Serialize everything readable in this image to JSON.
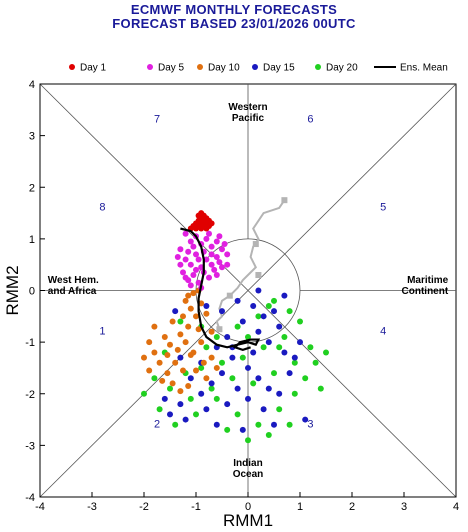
{
  "title": "ECMWF MONTHLY FORECASTS",
  "subtitle": "FORECAST  BASED 23/01/2026 00UTC",
  "chart_data": {
    "type": "scatter",
    "xlabel": "RMM1",
    "ylabel": "RMM2",
    "xlim": [
      -4,
      4
    ],
    "ylim": [
      -4,
      4
    ],
    "xticks": [
      "-4",
      "-3",
      "-2",
      "-1",
      "0",
      "1",
      "2",
      "3",
      "4"
    ],
    "yticks": [
      "-4",
      "-3",
      "-2",
      "-1",
      "0",
      "1",
      "2",
      "3",
      "4"
    ],
    "grid": false,
    "legend_position": "top",
    "phases": [
      {
        "label": "1",
        "x": -2.8,
        "y": -0.85
      },
      {
        "label": "2",
        "x": -1.75,
        "y": -2.65
      },
      {
        "label": "3",
        "x": 1.2,
        "y": -2.65
      },
      {
        "label": "4",
        "x": 2.6,
        "y": -0.85
      },
      {
        "label": "5",
        "x": 2.6,
        "y": 1.55
      },
      {
        "label": "6",
        "x": 1.2,
        "y": 3.25
      },
      {
        "label": "7",
        "x": -1.75,
        "y": 3.25
      },
      {
        "label": "8",
        "x": -2.8,
        "y": 1.55
      }
    ],
    "regions": [
      {
        "lines": [
          "Western",
          "Pacific"
        ],
        "x": 0.0,
        "y": 3.5,
        "anchor": "middle"
      },
      {
        "lines": [
          "West Hem.",
          "and Africa"
        ],
        "x": -3.85,
        "y": 0.15,
        "anchor": "start"
      },
      {
        "lines": [
          "Maritime",
          "Continent"
        ],
        "x": 3.85,
        "y": 0.15,
        "anchor": "end"
      },
      {
        "lines": [
          "Indian",
          "Ocean"
        ],
        "x": 0.0,
        "y": -3.4,
        "anchor": "middle"
      }
    ],
    "series": [
      {
        "name": "Day 1",
        "color": "#e00000",
        "points": [
          [
            -0.95,
            1.25
          ],
          [
            -0.9,
            1.3
          ],
          [
            -0.85,
            1.35
          ],
          [
            -1.0,
            1.3
          ],
          [
            -0.8,
            1.3
          ],
          [
            -0.9,
            1.4
          ],
          [
            -0.85,
            1.45
          ],
          [
            -1.05,
            1.25
          ],
          [
            -0.75,
            1.25
          ],
          [
            -0.95,
            1.35
          ],
          [
            -0.8,
            1.4
          ],
          [
            -0.9,
            1.2
          ],
          [
            -0.7,
            1.3
          ],
          [
            -1.1,
            1.2
          ],
          [
            -0.85,
            1.25
          ],
          [
            -0.95,
            1.45
          ],
          [
            -0.75,
            1.35
          ],
          [
            -1.0,
            1.2
          ],
          [
            -0.8,
            1.2
          ],
          [
            -0.9,
            1.5
          ]
        ]
      },
      {
        "name": "Day 5",
        "color": "#e020e0",
        "points": [
          [
            -1.2,
            1.1
          ],
          [
            -1.1,
            0.95
          ],
          [
            -1.0,
            1.05
          ],
          [
            -0.9,
            0.9
          ],
          [
            -0.8,
            1.0
          ],
          [
            -0.7,
            0.85
          ],
          [
            -0.6,
            0.95
          ],
          [
            -1.3,
            0.8
          ],
          [
            -1.2,
            0.6
          ],
          [
            -1.1,
            0.5
          ],
          [
            -1.0,
            0.7
          ],
          [
            -0.9,
            0.45
          ],
          [
            -0.8,
            0.6
          ],
          [
            -0.7,
            0.5
          ],
          [
            -0.6,
            0.65
          ],
          [
            -0.5,
            0.8
          ],
          [
            -1.25,
            0.35
          ],
          [
            -1.15,
            0.2
          ],
          [
            -1.05,
            0.3
          ],
          [
            -0.95,
            0.15
          ],
          [
            -0.85,
            0.35
          ],
          [
            -0.75,
            0.25
          ],
          [
            -0.65,
            0.4
          ],
          [
            -0.55,
            0.55
          ],
          [
            -0.45,
            0.9
          ],
          [
            -0.4,
            0.7
          ],
          [
            -1.3,
            0.5
          ],
          [
            -1.2,
            0.25
          ],
          [
            -1.05,
            0.85
          ],
          [
            -0.95,
            0.6
          ],
          [
            -0.85,
            0.75
          ],
          [
            -0.7,
            0.7
          ],
          [
            -0.6,
            0.3
          ],
          [
            -0.5,
            0.45
          ],
          [
            -1.1,
            0.1
          ],
          [
            -0.9,
            0.05
          ],
          [
            -1.35,
            0.65
          ],
          [
            -0.75,
            1.1
          ],
          [
            -0.55,
            1.05
          ],
          [
            -1.15,
            0.75
          ],
          [
            -0.4,
            0.5
          ],
          [
            -1.0,
            0.4
          ]
        ]
      },
      {
        "name": "Day 10",
        "color": "#e07010",
        "points": [
          [
            -1.2,
            -0.2
          ],
          [
            -1.1,
            -0.35
          ],
          [
            -1.25,
            -0.5
          ],
          [
            -1.15,
            -0.7
          ],
          [
            -1.3,
            -0.85
          ],
          [
            -1.2,
            -1.0
          ],
          [
            -1.35,
            -1.15
          ],
          [
            -1.1,
            -1.25
          ],
          [
            -1.4,
            -1.4
          ],
          [
            -1.25,
            -1.55
          ],
          [
            -1.5,
            -1.05
          ],
          [
            -1.6,
            -0.9
          ],
          [
            -1.8,
            -1.2
          ],
          [
            -1.9,
            -1.0
          ],
          [
            -1.7,
            -1.4
          ],
          [
            -1.55,
            -1.6
          ],
          [
            -1.45,
            -1.8
          ],
          [
            -1.65,
            -1.75
          ],
          [
            -1.3,
            -1.95
          ],
          [
            -1.9,
            -1.55
          ],
          [
            -1.0,
            -0.5
          ],
          [
            -0.95,
            -0.75
          ],
          [
            -0.9,
            -1.0
          ],
          [
            -1.05,
            -1.2
          ],
          [
            -0.85,
            -1.4
          ],
          [
            -1.0,
            -1.55
          ],
          [
            -0.8,
            -1.7
          ],
          [
            -0.7,
            -1.3
          ],
          [
            -0.6,
            -1.5
          ],
          [
            -1.15,
            -0.1
          ],
          [
            -1.05,
            -0.05
          ],
          [
            -0.9,
            -0.25
          ],
          [
            -0.8,
            -0.45
          ],
          [
            -0.7,
            -0.8
          ],
          [
            -1.8,
            -0.7
          ],
          [
            -2.0,
            -1.3
          ],
          [
            -1.55,
            -1.25
          ],
          [
            -1.45,
            -0.6
          ],
          [
            -0.95,
            0.0
          ],
          [
            -1.15,
            -1.85
          ]
        ]
      },
      {
        "name": "Day 15",
        "color": "#1a1ac0",
        "points": [
          [
            -0.2,
            -0.2
          ],
          [
            0.1,
            -0.3
          ],
          [
            0.3,
            -0.5
          ],
          [
            0.5,
            -0.4
          ],
          [
            -0.1,
            -0.6
          ],
          [
            0.2,
            -0.8
          ],
          [
            0.4,
            -1.0
          ],
          [
            0.6,
            -0.7
          ],
          [
            -0.4,
            -0.9
          ],
          [
            -0.6,
            -1.1
          ],
          [
            -0.3,
            -1.3
          ],
          [
            0.0,
            -1.5
          ],
          [
            0.2,
            -1.7
          ],
          [
            0.4,
            -1.9
          ],
          [
            -0.2,
            -1.9
          ],
          [
            -0.5,
            -1.6
          ],
          [
            -0.7,
            -1.8
          ],
          [
            -0.9,
            -2.0
          ],
          [
            -1.1,
            -1.7
          ],
          [
            -1.3,
            -2.2
          ],
          [
            -0.8,
            -2.3
          ],
          [
            -0.4,
            -2.2
          ],
          [
            0.0,
            -2.1
          ],
          [
            0.3,
            -2.3
          ],
          [
            0.6,
            -2.0
          ],
          [
            0.8,
            -1.6
          ],
          [
            0.9,
            -1.3
          ],
          [
            1.0,
            -1.0
          ],
          [
            0.7,
            -1.2
          ],
          [
            -1.5,
            -2.4
          ],
          [
            -1.2,
            -2.5
          ],
          [
            -0.6,
            -2.6
          ],
          [
            -0.1,
            -2.7
          ],
          [
            0.5,
            -2.6
          ],
          [
            -1.4,
            -0.4
          ],
          [
            -0.8,
            -0.3
          ],
          [
            -0.5,
            -0.4
          ],
          [
            0.7,
            -0.1
          ],
          [
            0.2,
            0.0
          ],
          [
            -1.6,
            -2.1
          ],
          [
            1.1,
            -2.5
          ],
          [
            -0.3,
            -1.1
          ],
          [
            0.1,
            -1.2
          ],
          [
            -0.9,
            -1.4
          ],
          [
            -1.3,
            -1.3
          ]
        ]
      },
      {
        "name": "Day 20",
        "color": "#20d020",
        "points": [
          [
            0.5,
            -0.2
          ],
          [
            0.8,
            -0.4
          ],
          [
            1.0,
            -0.6
          ],
          [
            0.7,
            -0.9
          ],
          [
            0.3,
            -1.1
          ],
          [
            -0.1,
            -1.3
          ],
          [
            -0.5,
            -1.4
          ],
          [
            -0.9,
            -1.5
          ],
          [
            -1.2,
            -1.6
          ],
          [
            -1.5,
            -1.9
          ],
          [
            -1.7,
            -2.3
          ],
          [
            -1.4,
            -2.6
          ],
          [
            -1.0,
            -2.4
          ],
          [
            -0.6,
            -2.1
          ],
          [
            -0.2,
            -2.4
          ],
          [
            0.2,
            -2.6
          ],
          [
            0.6,
            -2.3
          ],
          [
            0.9,
            -2.0
          ],
          [
            1.1,
            -1.7
          ],
          [
            1.3,
            -1.4
          ],
          [
            1.2,
            -1.1
          ],
          [
            0.9,
            -1.4
          ],
          [
            0.5,
            -1.6
          ],
          [
            0.1,
            -1.8
          ],
          [
            -0.3,
            -1.7
          ],
          [
            -0.7,
            -1.9
          ],
          [
            -1.1,
            -2.1
          ],
          [
            -1.3,
            -0.6
          ],
          [
            -0.9,
            -0.7
          ],
          [
            -0.6,
            -0.9
          ],
          [
            -0.2,
            -0.7
          ],
          [
            0.2,
            -0.5
          ],
          [
            0.4,
            -0.3
          ],
          [
            -0.4,
            -2.7
          ],
          [
            0.0,
            -2.9
          ],
          [
            0.4,
            -2.8
          ],
          [
            0.8,
            -2.6
          ],
          [
            1.4,
            -1.9
          ],
          [
            -1.8,
            -1.7
          ],
          [
            -2.0,
            -2.0
          ],
          [
            0.6,
            -1.1
          ],
          [
            -0.8,
            -1.1
          ],
          [
            1.5,
            -1.2
          ],
          [
            -1.6,
            -1.2
          ],
          [
            0.0,
            -0.9
          ]
        ]
      }
    ],
    "ens_mean": {
      "name": "Ens. Mean",
      "color": "#000000",
      "points": [
        [
          -1.3,
          1.2
        ],
        [
          -1.1,
          1.15
        ],
        [
          -1.0,
          1.05
        ],
        [
          -0.9,
          0.85
        ],
        [
          -0.85,
          0.6
        ],
        [
          -0.85,
          0.35
        ],
        [
          -0.9,
          0.1
        ],
        [
          -0.95,
          -0.15
        ],
        [
          -0.95,
          -0.4
        ],
        [
          -0.9,
          -0.7
        ],
        [
          -0.8,
          -0.9
        ],
        [
          -0.6,
          -1.05
        ],
        [
          -0.4,
          -1.1
        ],
        [
          -0.2,
          -1.05
        ],
        [
          0.0,
          -1.0
        ],
        [
          0.15,
          -1.05
        ],
        [
          0.2,
          -0.95
        ],
        [
          0.05,
          -0.95
        ],
        [
          -0.15,
          -1.0
        ],
        [
          -0.25,
          -1.1
        ],
        [
          -0.1,
          -1.15
        ],
        [
          0.05,
          -1.1
        ]
      ]
    },
    "analysis_track": {
      "color": "#b4b4b4",
      "points": [
        [
          0.7,
          1.75
        ],
        [
          0.6,
          1.6
        ],
        [
          0.3,
          1.5
        ],
        [
          0.1,
          1.2
        ],
        [
          0.2,
          1.0
        ],
        [
          0.1,
          0.85
        ],
        [
          0.05,
          0.65
        ],
        [
          0.15,
          0.45
        ],
        [
          0.0,
          0.3
        ],
        [
          -0.1,
          0.2
        ],
        [
          -0.2,
          0.05
        ],
        [
          -0.35,
          -0.1
        ],
        [
          -0.5,
          -0.2
        ],
        [
          -0.55,
          -0.35
        ],
        [
          -0.5,
          -0.5
        ],
        [
          -0.6,
          -0.6
        ],
        [
          -0.55,
          -0.75
        ]
      ]
    },
    "analysis_markers": [
      [
        0.7,
        1.75
      ],
      [
        0.15,
        0.9
      ],
      [
        0.2,
        0.3
      ],
      [
        -0.35,
        -0.1
      ],
      [
        -0.55,
        -0.75
      ]
    ]
  }
}
